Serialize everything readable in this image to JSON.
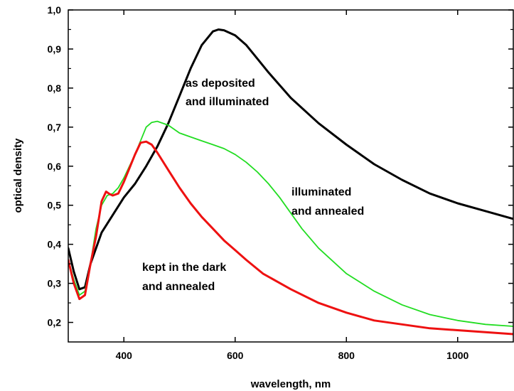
{
  "chart_data": {
    "type": "line",
    "title": "",
    "xlabel": "wavelength, nm",
    "ylabel": "optical density",
    "xlim": [
      300,
      1100
    ],
    "ylim": [
      0.15,
      1.0
    ],
    "grid": false,
    "legend": "none",
    "x_ticks": [
      400,
      600,
      800,
      1000
    ],
    "x_tick_labels": [
      "400",
      "600",
      "800",
      "1000"
    ],
    "y_ticks": [
      0.2,
      0.3,
      0.4,
      0.5,
      0.6,
      0.7,
      0.8,
      0.9,
      1.0
    ],
    "y_tick_labels": [
      "0,2",
      "0,3",
      "0,4",
      "0,5",
      "0,6",
      "0,7",
      "0,8",
      "0,9",
      "1,0"
    ],
    "annotations": [
      {
        "lines": [
          "as deposited",
          "and illuminated"
        ]
      },
      {
        "lines": [
          "illuminated",
          "and annealed"
        ]
      },
      {
        "lines": [
          "kept in the dark",
          "and annealed"
        ]
      }
    ],
    "series": [
      {
        "color": "#000000",
        "points": [
          [
            300,
            0.39
          ],
          [
            310,
            0.33
          ],
          [
            320,
            0.285
          ],
          [
            330,
            0.29
          ],
          [
            340,
            0.35
          ],
          [
            350,
            0.39
          ],
          [
            360,
            0.43
          ],
          [
            380,
            0.475
          ],
          [
            400,
            0.52
          ],
          [
            420,
            0.555
          ],
          [
            440,
            0.6
          ],
          [
            460,
            0.65
          ],
          [
            480,
            0.71
          ],
          [
            500,
            0.78
          ],
          [
            520,
            0.85
          ],
          [
            540,
            0.91
          ],
          [
            560,
            0.945
          ],
          [
            570,
            0.95
          ],
          [
            580,
            0.948
          ],
          [
            600,
            0.935
          ],
          [
            620,
            0.91
          ],
          [
            640,
            0.875
          ],
          [
            660,
            0.84
          ],
          [
            700,
            0.775
          ],
          [
            750,
            0.71
          ],
          [
            800,
            0.655
          ],
          [
            850,
            0.605
          ],
          [
            900,
            0.565
          ],
          [
            950,
            0.53
          ],
          [
            1000,
            0.505
          ],
          [
            1050,
            0.485
          ],
          [
            1100,
            0.465
          ]
        ]
      },
      {
        "color": "#22dd22",
        "points": [
          [
            300,
            0.36
          ],
          [
            310,
            0.31
          ],
          [
            320,
            0.27
          ],
          [
            330,
            0.28
          ],
          [
            340,
            0.35
          ],
          [
            350,
            0.44
          ],
          [
            360,
            0.5
          ],
          [
            370,
            0.525
          ],
          [
            380,
            0.53
          ],
          [
            390,
            0.545
          ],
          [
            400,
            0.57
          ],
          [
            420,
            0.63
          ],
          [
            440,
            0.7
          ],
          [
            450,
            0.712
          ],
          [
            460,
            0.715
          ],
          [
            480,
            0.705
          ],
          [
            500,
            0.685
          ],
          [
            520,
            0.675
          ],
          [
            540,
            0.665
          ],
          [
            560,
            0.655
          ],
          [
            580,
            0.645
          ],
          [
            600,
            0.63
          ],
          [
            620,
            0.61
          ],
          [
            640,
            0.585
          ],
          [
            660,
            0.555
          ],
          [
            680,
            0.52
          ],
          [
            700,
            0.48
          ],
          [
            720,
            0.44
          ],
          [
            750,
            0.39
          ],
          [
            800,
            0.325
          ],
          [
            850,
            0.28
          ],
          [
            900,
            0.245
          ],
          [
            950,
            0.22
          ],
          [
            1000,
            0.205
          ],
          [
            1050,
            0.195
          ],
          [
            1100,
            0.19
          ]
        ]
      },
      {
        "color": "#ee1111",
        "points": [
          [
            300,
            0.36
          ],
          [
            310,
            0.3
          ],
          [
            320,
            0.26
          ],
          [
            330,
            0.27
          ],
          [
            340,
            0.35
          ],
          [
            350,
            0.42
          ],
          [
            360,
            0.51
          ],
          [
            368,
            0.535
          ],
          [
            375,
            0.528
          ],
          [
            380,
            0.525
          ],
          [
            390,
            0.53
          ],
          [
            400,
            0.56
          ],
          [
            420,
            0.63
          ],
          [
            430,
            0.66
          ],
          [
            440,
            0.663
          ],
          [
            450,
            0.655
          ],
          [
            460,
            0.635
          ],
          [
            480,
            0.59
          ],
          [
            500,
            0.545
          ],
          [
            520,
            0.505
          ],
          [
            540,
            0.47
          ],
          [
            560,
            0.44
          ],
          [
            580,
            0.41
          ],
          [
            600,
            0.385
          ],
          [
            620,
            0.36
          ],
          [
            650,
            0.325
          ],
          [
            700,
            0.285
          ],
          [
            750,
            0.25
          ],
          [
            800,
            0.225
          ],
          [
            850,
            0.205
          ],
          [
            900,
            0.195
          ],
          [
            950,
            0.185
          ],
          [
            1000,
            0.18
          ],
          [
            1050,
            0.175
          ],
          [
            1100,
            0.17
          ]
        ]
      }
    ]
  }
}
